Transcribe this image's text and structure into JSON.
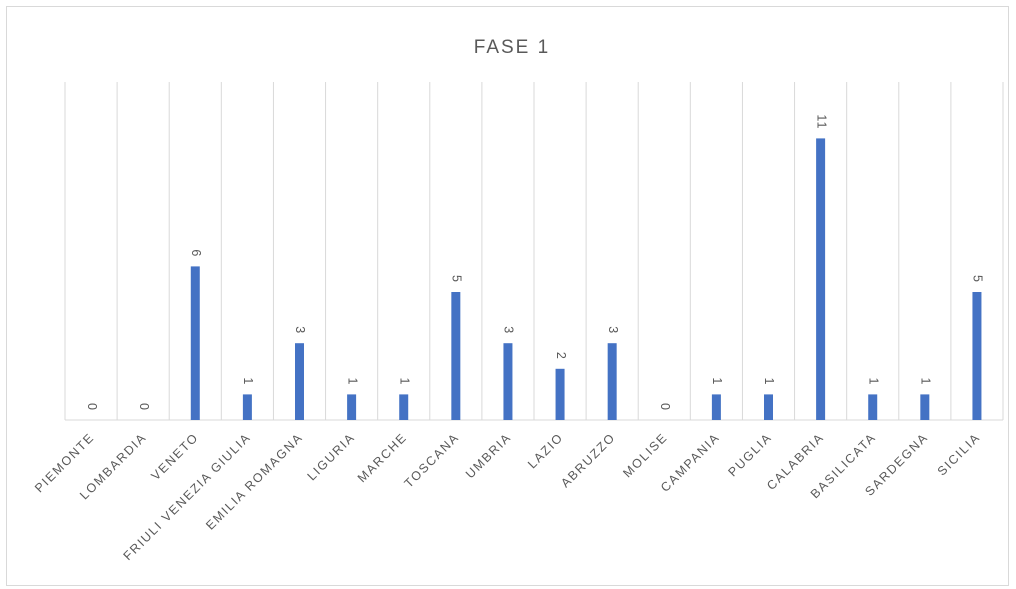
{
  "chart_data": {
    "type": "bar",
    "title": "FASE 1",
    "xlabel": "",
    "ylabel": "",
    "categories": [
      "PIEMONTE",
      "LOMBARDIA",
      "VENETO",
      "FRIULI VENEZIA GIULIA",
      "EMILIA ROMAGNA",
      "LIGURIA",
      "MARCHE",
      "TOSCANA",
      "UMBRIA",
      "LAZIO",
      "ABRUZZO",
      "MOLISE",
      "CAMPANIA",
      "PUGLIA",
      "CALABRIA",
      "BASILICATA",
      "SARDEGNA",
      "SICILIA"
    ],
    "values": [
      0,
      0,
      6,
      1,
      3,
      1,
      1,
      5,
      3,
      2,
      3,
      0,
      1,
      1,
      11,
      1,
      1,
      5
    ],
    "ylim": [
      0,
      12
    ],
    "grid": "vertical",
    "legend": "none",
    "data_labels": true,
    "bar_color": "#4472c4",
    "grid_color": "#d9d9d9"
  }
}
